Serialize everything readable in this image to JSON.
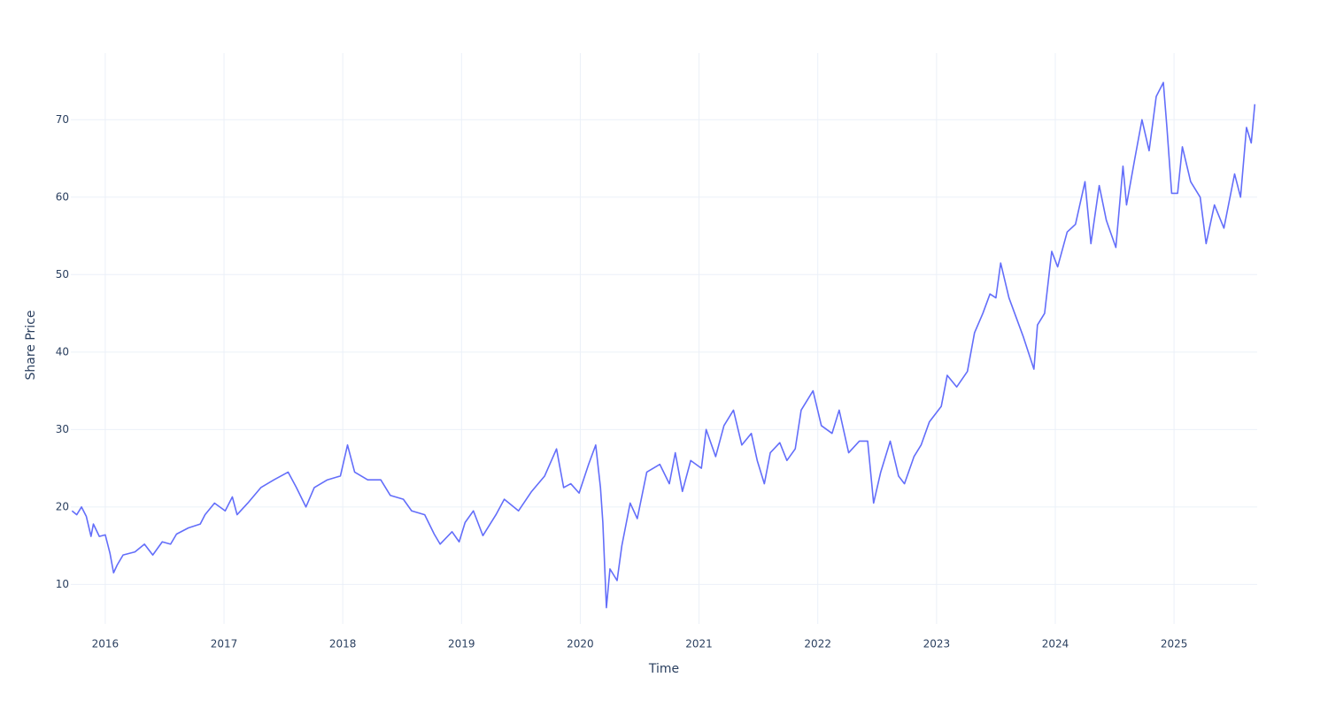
{
  "chart_data": {
    "type": "line",
    "x_label": "Time",
    "y_label": "Share Price",
    "color": "#636efa",
    "grid": true,
    "xlim": [
      2015.71,
      2025.7
    ],
    "ylim": [
      4.9,
      78.6
    ],
    "xticks": [
      2016,
      2017,
      2018,
      2019,
      2020,
      2021,
      2022,
      2023,
      2024,
      2025
    ],
    "yticks": [
      10,
      20,
      30,
      40,
      50,
      60,
      70
    ],
    "x": [
      2015.72,
      2015.76,
      2015.8,
      2015.84,
      2015.88,
      2015.9,
      2015.95,
      2016.0,
      2016.04,
      2016.07,
      2016.1,
      2016.15,
      2016.25,
      2016.33,
      2016.4,
      2016.48,
      2016.55,
      2016.6,
      2016.7,
      2016.8,
      2016.84,
      2016.92,
      2017.01,
      2017.07,
      2017.11,
      2017.2,
      2017.31,
      2017.42,
      2017.54,
      2017.61,
      2017.69,
      2017.76,
      2017.87,
      2017.98,
      2018.04,
      2018.1,
      2018.21,
      2018.32,
      2018.4,
      2018.51,
      2018.58,
      2018.69,
      2018.77,
      2018.82,
      2018.92,
      2018.98,
      2019.03,
      2019.1,
      2019.18,
      2019.29,
      2019.36,
      2019.48,
      2019.59,
      2019.7,
      2019.8,
      2019.86,
      2019.92,
      2019.99,
      2020.07,
      2020.13,
      2020.17,
      2020.19,
      2020.22,
      2020.25,
      2020.31,
      2020.35,
      2020.42,
      2020.48,
      2020.56,
      2020.67,
      2020.75,
      2020.8,
      2020.86,
      2020.93,
      2021.02,
      2021.06,
      2021.14,
      2021.21,
      2021.29,
      2021.36,
      2021.44,
      2021.49,
      2021.55,
      2021.6,
      2021.68,
      2021.74,
      2021.81,
      2021.86,
      2021.96,
      2022.03,
      2022.12,
      2022.18,
      2022.26,
      2022.35,
      2022.42,
      2022.47,
      2022.53,
      2022.61,
      2022.68,
      2022.73,
      2022.81,
      2022.87,
      2022.94,
      2023.04,
      2023.09,
      2023.17,
      2023.26,
      2023.32,
      2023.39,
      2023.45,
      2023.5,
      2023.54,
      2023.61,
      2023.67,
      2023.73,
      2023.82,
      2023.85,
      2023.91,
      2023.97,
      2024.02,
      2024.1,
      2024.17,
      2024.25,
      2024.3,
      2024.37,
      2024.43,
      2024.51,
      2024.57,
      2024.6,
      2024.67,
      2024.73,
      2024.79,
      2024.85,
      2024.91,
      2024.94,
      2024.98,
      2025.03,
      2025.07,
      2025.14,
      2025.22,
      2025.27,
      2025.34,
      2025.42,
      2025.51,
      2025.56,
      2025.61,
      2025.65,
      2025.68
    ],
    "values": [
      19.5,
      19.0,
      20.0,
      18.8,
      16.2,
      17.8,
      16.2,
      16.4,
      14.0,
      11.5,
      12.5,
      13.8,
      14.2,
      15.2,
      13.8,
      15.5,
      15.2,
      16.5,
      17.3,
      17.8,
      19.0,
      20.5,
      19.5,
      21.3,
      19.0,
      20.5,
      22.5,
      23.5,
      24.5,
      22.5,
      20.0,
      22.5,
      23.5,
      24.0,
      28.0,
      24.5,
      23.5,
      23.5,
      21.5,
      21.0,
      19.5,
      19.0,
      16.5,
      15.2,
      16.8,
      15.5,
      18.0,
      19.5,
      16.3,
      19.0,
      21.0,
      19.5,
      22.0,
      24.0,
      27.5,
      22.5,
      23.0,
      21.8,
      25.5,
      28.0,
      22.5,
      18.0,
      7.0,
      12.0,
      10.5,
      15.0,
      20.5,
      18.5,
      24.5,
      25.5,
      23.0,
      27.0,
      22.0,
      26.0,
      25.0,
      30.0,
      26.5,
      30.5,
      32.5,
      28.0,
      29.5,
      26.0,
      23.0,
      27.0,
      28.3,
      26.0,
      27.5,
      32.5,
      35.0,
      30.5,
      29.5,
      32.5,
      27.0,
      28.5,
      28.5,
      20.5,
      24.5,
      28.5,
      24.0,
      23.0,
      26.5,
      28.0,
      31.0,
      33.0,
      37.0,
      35.5,
      37.5,
      42.5,
      45.0,
      47.5,
      47.0,
      51.5,
      47.0,
      44.5,
      42.0,
      37.8,
      43.5,
      45.0,
      53.0,
      51.0,
      55.5,
      56.5,
      62.0,
      54.0,
      61.5,
      57.0,
      53.5,
      64.0,
      59.0,
      65.0,
      70.0,
      66.0,
      73.0,
      74.8,
      69.0,
      60.5,
      60.5,
      66.5,
      62.0,
      60.0,
      54.0,
      59.0,
      56.0,
      63.0,
      60.0,
      69.0,
      67.0,
      72.0
    ]
  }
}
